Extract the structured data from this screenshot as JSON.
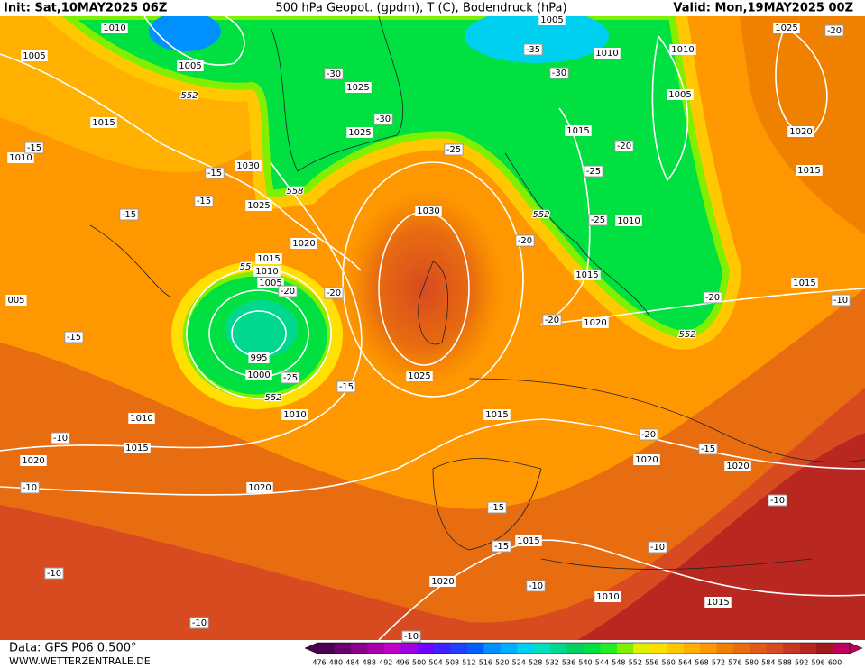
{
  "header": {
    "init": "Init: Sat,10MAY2025 06Z",
    "title": "500 hPa Geopot. (gpdm), T (C), Bodendruck (hPa)",
    "valid": "Valid: Mon,19MAY2025 00Z"
  },
  "footer": {
    "data": "Data: GFS P06 0.500°",
    "site": "WWW.WETTERZENTRALE.DE"
  },
  "legend": {
    "ticks": [
      476,
      480,
      484,
      488,
      492,
      496,
      500,
      504,
      508,
      512,
      516,
      520,
      524,
      528,
      532,
      536,
      540,
      544,
      548,
      552,
      556,
      560,
      564,
      568,
      572,
      576,
      580,
      584,
      588,
      592,
      596,
      600
    ],
    "colors": [
      "#4b0050",
      "#6a006f",
      "#8a008c",
      "#a800a8",
      "#c000c8",
      "#a000e0",
      "#7000ff",
      "#4020ff",
      "#2040ff",
      "#0060ff",
      "#0090ff",
      "#00b0ff",
      "#00d0f0",
      "#00e0c0",
      "#00d890",
      "#00d060",
      "#00e040",
      "#20f020",
      "#80f000",
      "#e0f000",
      "#ffe000",
      "#ffc800",
      "#ffb000",
      "#ff9800",
      "#f08000",
      "#e86c10",
      "#e05a18",
      "#d84a20",
      "#c83820",
      "#b82820",
      "#a01818",
      "#c00060"
    ]
  },
  "isobar_labels": [
    1010,
    1005,
    1005,
    1015,
    1010,
    1030,
    1025,
    1020,
    1015,
    1010,
    1005,
    995,
    1000,
    1010,
    1010,
    1015,
    1020,
    1020,
    1025,
    1030,
    1025,
    1025,
    1005,
    1010,
    1010,
    1005,
    1015,
    1010,
    1015,
    1020,
    1015,
    1020,
    1020,
    1015,
    1015,
    1020,
    1025,
    1015,
    1020,
    1010,
    1015,
    "005"
  ],
  "temperature_labels": [
    -15,
    -15,
    -15,
    -15,
    -15,
    -20,
    -20,
    -25,
    -15,
    -10,
    -10,
    -30,
    -30,
    -25,
    -35,
    -30,
    -20,
    -25,
    -25,
    -20,
    -20,
    -20,
    -15,
    -10,
    -20,
    -10,
    -20,
    -15,
    -15,
    -10,
    -10,
    -10,
    -10,
    -10
  ],
  "geopotential_labels": [
    552,
    558,
    552,
    552,
    552,
    55
  ]
}
